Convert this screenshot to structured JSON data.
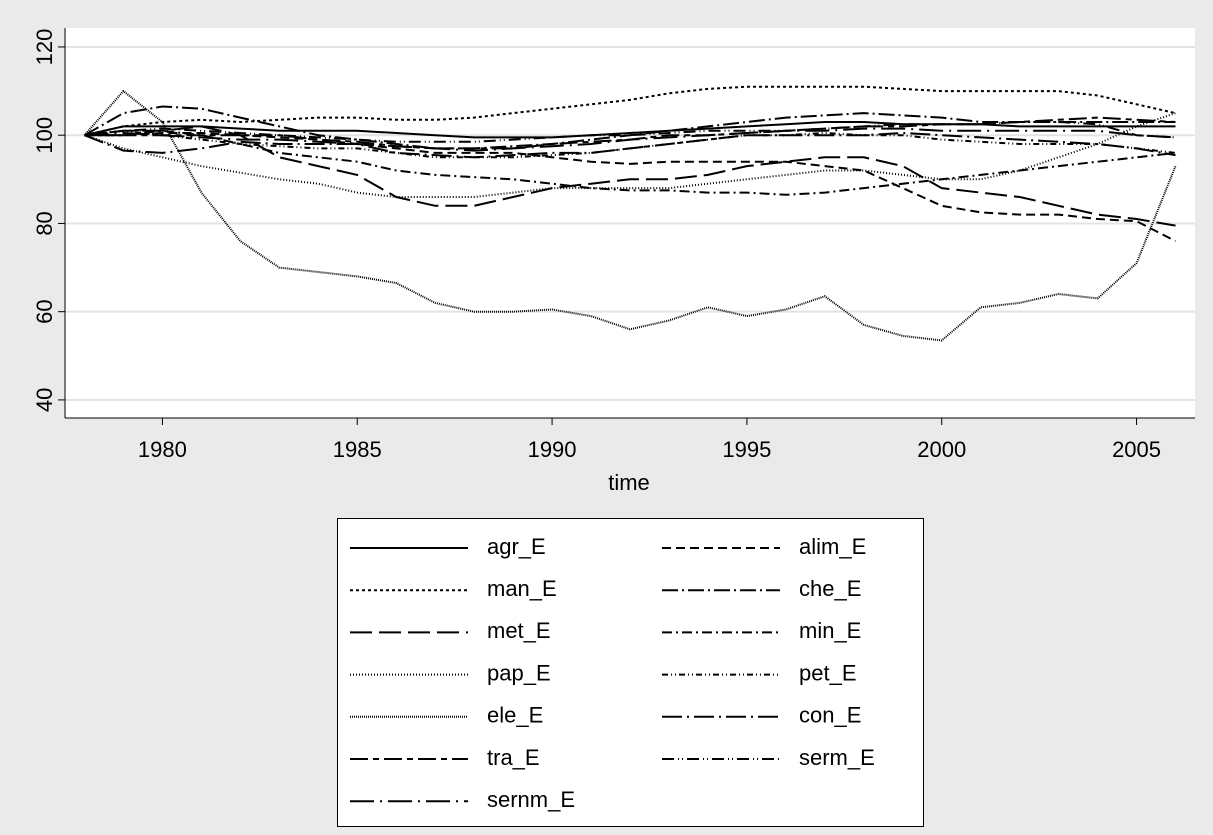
{
  "chart_data": {
    "type": "line",
    "x_label": "time",
    "x": [
      1978,
      1979,
      1980,
      1981,
      1982,
      1983,
      1984,
      1985,
      1986,
      1987,
      1988,
      1989,
      1990,
      1991,
      1992,
      1993,
      1994,
      1995,
      1996,
      1997,
      1998,
      1999,
      2000,
      2001,
      2002,
      2003,
      2004,
      2005,
      2006
    ],
    "xlim": [
      1977.5,
      2006.5
    ],
    "xticks": [
      1980,
      1985,
      1990,
      1995,
      2000,
      2005
    ],
    "ylim": [
      35.9,
      124.3
    ],
    "yticks": [
      40,
      60,
      80,
      100,
      120
    ],
    "grid": true,
    "series": [
      {
        "name": "agr_E",
        "color": "#000000",
        "values": [
          100,
          102,
          102,
          102,
          101.5,
          101,
          101,
          101,
          100.5,
          100,
          99.5,
          99.5,
          99.5,
          100,
          100.5,
          101,
          101.5,
          102,
          102.5,
          103,
          103,
          102.5,
          102.5,
          102.5,
          102,
          102,
          102,
          102,
          102
        ]
      },
      {
        "name": "alim_E",
        "color": "#000000",
        "values": [
          100,
          100,
          100.5,
          100.5,
          100,
          99.5,
          99,
          98,
          97,
          96,
          96,
          96,
          95,
          94,
          93.5,
          94,
          94,
          94,
          94,
          93,
          92,
          88,
          84,
          82.5,
          82,
          82,
          81,
          80.5,
          76
        ]
      },
      {
        "name": "man_E",
        "color": "#000000",
        "values": [
          100,
          102,
          103,
          103.5,
          103,
          103.5,
          104,
          104,
          103.5,
          103.5,
          104,
          105,
          106,
          107,
          108,
          109.5,
          110.5,
          111,
          111,
          111,
          111,
          110.5,
          110,
          110,
          110,
          110,
          109,
          107,
          105
        ]
      },
      {
        "name": "che_E",
        "color": "#000000",
        "values": [
          100,
          105,
          106.5,
          106,
          104,
          102,
          100,
          99,
          98,
          97,
          97,
          97.5,
          98,
          99,
          100,
          101,
          102,
          103,
          104,
          104.5,
          105,
          104.5,
          104,
          103,
          103,
          103,
          103,
          103,
          103
        ]
      },
      {
        "name": "met_E",
        "color": "#000000",
        "values": [
          100,
          101,
          101,
          102,
          100,
          95,
          93,
          91,
          86,
          84,
          84,
          86,
          88,
          89,
          90,
          90,
          91,
          93,
          94,
          95,
          95,
          93,
          88,
          87,
          86,
          84,
          82,
          81,
          79.5
        ]
      },
      {
        "name": "min_E",
        "color": "#000000",
        "values": [
          100,
          100,
          101,
          100,
          98,
          96,
          95,
          94,
          92,
          91,
          90.5,
          90,
          89,
          88,
          87.5,
          87.5,
          87,
          87,
          86.5,
          87,
          88,
          89,
          90,
          91,
          92,
          93,
          94,
          95,
          96
        ]
      },
      {
        "name": "pap_E",
        "color": "#000000",
        "values": [
          100,
          97,
          95,
          93,
          91.5,
          90,
          89,
          87,
          86,
          86,
          86,
          87,
          88,
          88,
          88,
          88,
          89,
          90,
          91,
          92,
          92,
          91,
          90,
          90,
          92,
          95,
          98,
          102,
          105
        ]
      },
      {
        "name": "pet_E",
        "color": "#000000",
        "values": [
          100,
          101,
          100,
          99,
          98,
          97.5,
          97,
          97,
          96,
          95,
          95,
          95,
          95.5,
          96,
          97,
          98,
          99,
          100,
          100,
          100.5,
          100,
          100,
          99,
          98.5,
          98,
          98,
          98,
          97,
          96
        ]
      },
      {
        "name": "ele_E",
        "color": "#000000",
        "values": [
          100,
          110,
          103,
          87,
          76,
          70,
          69,
          68,
          66.5,
          62,
          60,
          60,
          60.5,
          59,
          56,
          58,
          61,
          59,
          60.5,
          63.5,
          57,
          54.5,
          53.5,
          61,
          62,
          64,
          63,
          71,
          93
        ]
      },
      {
        "name": "con_E",
        "color": "#000000",
        "values": [
          100,
          96.5,
          96,
          97,
          98.5,
          98,
          98,
          98,
          96,
          95.5,
          95,
          95.5,
          96,
          96,
          97,
          98,
          99,
          100,
          100,
          100,
          100,
          100.5,
          100,
          99.5,
          99,
          98.5,
          98,
          97,
          95.5
        ]
      },
      {
        "name": "tra_E",
        "color": "#000000",
        "values": [
          100,
          100,
          100,
          100,
          100,
          100,
          99,
          98.5,
          97.5,
          97,
          97,
          97,
          98,
          98.5,
          99,
          100,
          100,
          100.5,
          101,
          101.5,
          102,
          102,
          102.5,
          102.5,
          103,
          103.5,
          104,
          103.5,
          103
        ]
      },
      {
        "name": "serm_E",
        "color": "#000000",
        "values": [
          100,
          101,
          101.5,
          101,
          100.5,
          100,
          99.5,
          99,
          98.5,
          98.5,
          98.5,
          99,
          99.5,
          100,
          100,
          100.5,
          101,
          101,
          101,
          101.5,
          102,
          102.5,
          102.5,
          102.5,
          103,
          103,
          102.5,
          100,
          99.5
        ]
      },
      {
        "name": "sernm_E",
        "color": "#000000",
        "values": [
          100,
          100.5,
          100,
          99.5,
          99,
          99,
          98.5,
          98,
          97.5,
          97,
          96.5,
          97,
          97.5,
          98,
          99,
          99.5,
          100,
          100.5,
          101,
          101,
          101.5,
          101.5,
          101,
          101,
          101,
          101,
          101,
          100,
          99.5
        ]
      }
    ]
  }
}
